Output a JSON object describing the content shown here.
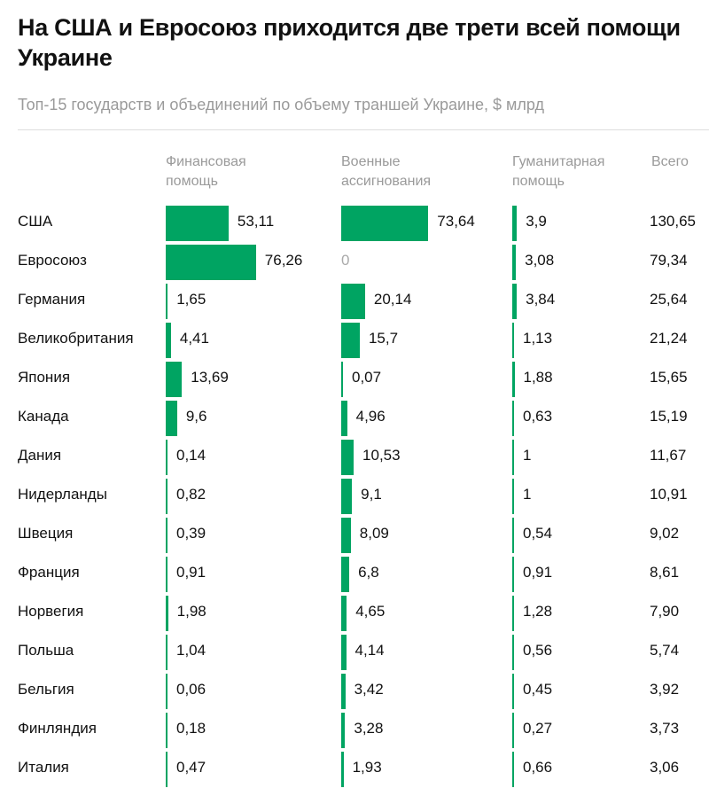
{
  "title": "На США и Евросоюз приходится две трети всей помощи Украине",
  "subtitle": "Топ-15 государств и объединений по объему траншей Украине, $ млрд",
  "chart_data": {
    "type": "table",
    "columns": [
      "Финансовая помощь",
      "Военные ассигнования",
      "Гуманитарная помощь",
      "Всего"
    ],
    "rows": [
      {
        "country": "США",
        "financial": "53,11",
        "military": "73,64",
        "humanitarian": "3,9",
        "total": "130,65"
      },
      {
        "country": "Евросоюз",
        "financial": "76,26",
        "military": "0",
        "humanitarian": "3,08",
        "total": "79,34"
      },
      {
        "country": "Германия",
        "financial": "1,65",
        "military": "20,14",
        "humanitarian": "3,84",
        "total": "25,64"
      },
      {
        "country": "Великобритания",
        "financial": "4,41",
        "military": "15,7",
        "humanitarian": "1,13",
        "total": "21,24"
      },
      {
        "country": "Япония",
        "financial": "13,69",
        "military": "0,07",
        "humanitarian": "1,88",
        "total": "15,65"
      },
      {
        "country": "Канада",
        "financial": "9,6",
        "military": "4,96",
        "humanitarian": "0,63",
        "total": "15,19"
      },
      {
        "country": "Дания",
        "financial": "0,14",
        "military": "10,53",
        "humanitarian": "1",
        "total": "11,67"
      },
      {
        "country": "Нидерланды",
        "financial": "0,82",
        "military": "9,1",
        "humanitarian": "1",
        "total": "10,91"
      },
      {
        "country": "Швеция",
        "financial": "0,39",
        "military": "8,09",
        "humanitarian": "0,54",
        "total": "9,02"
      },
      {
        "country": "Франция",
        "financial": "0,91",
        "military": "6,8",
        "humanitarian": "0,91",
        "total": "8,61"
      },
      {
        "country": "Норвегия",
        "financial": "1,98",
        "military": "4,65",
        "humanitarian": "1,28",
        "total": "7,90"
      },
      {
        "country": "Польша",
        "financial": "1,04",
        "military": "4,14",
        "humanitarian": "0,56",
        "total": "5,74"
      },
      {
        "country": "Бельгия",
        "financial": "0,06",
        "military": "3,42",
        "humanitarian": "0,45",
        "total": "3,92"
      },
      {
        "country": "Финляндия",
        "financial": "0,18",
        "military": "3,28",
        "humanitarian": "0,27",
        "total": "3,73"
      },
      {
        "country": "Италия",
        "financial": "0,47",
        "military": "1,93",
        "humanitarian": "0,66",
        "total": "3,06"
      }
    ],
    "bar_color": "#00a462"
  }
}
